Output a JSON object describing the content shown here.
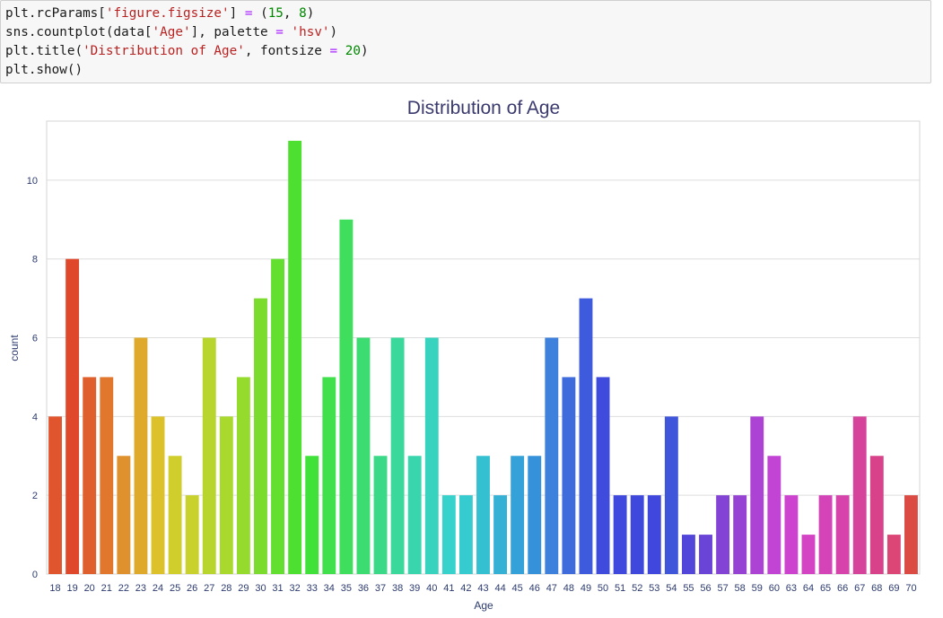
{
  "code_cell": {
    "lines": [
      [
        {
          "t": "plt.rcParams["
        },
        {
          "t": "'figure.figsize'",
          "c": "str"
        },
        {
          "t": "] "
        },
        {
          "t": "=",
          "c": "op"
        },
        {
          "t": " ("
        },
        {
          "t": "15",
          "c": "num"
        },
        {
          "t": ", "
        },
        {
          "t": "8",
          "c": "num"
        },
        {
          "t": ")"
        }
      ],
      [
        {
          "t": "sns.countplot(data["
        },
        {
          "t": "'Age'",
          "c": "str"
        },
        {
          "t": "], palette "
        },
        {
          "t": "=",
          "c": "op"
        },
        {
          "t": " "
        },
        {
          "t": "'hsv'",
          "c": "str"
        },
        {
          "t": ")"
        }
      ],
      [
        {
          "t": "plt.title("
        },
        {
          "t": "'Distribution of Age'",
          "c": "str"
        },
        {
          "t": ", fontsize "
        },
        {
          "t": "=",
          "c": "op"
        },
        {
          "t": " "
        },
        {
          "t": "20",
          "c": "num"
        },
        {
          "t": ")"
        }
      ],
      [
        {
          "t": "plt.show()"
        }
      ]
    ]
  },
  "chart_data": {
    "type": "bar",
    "title": "Distribution of Age",
    "xlabel": "Age",
    "ylabel": "count",
    "ylim": [
      0,
      11.5
    ],
    "yticks": [
      0,
      2,
      4,
      6,
      8,
      10
    ],
    "grid": true,
    "categories": [
      "18",
      "19",
      "20",
      "21",
      "22",
      "23",
      "24",
      "25",
      "26",
      "27",
      "28",
      "29",
      "30",
      "31",
      "32",
      "33",
      "34",
      "35",
      "36",
      "37",
      "38",
      "39",
      "40",
      "41",
      "42",
      "43",
      "44",
      "45",
      "46",
      "47",
      "48",
      "49",
      "50",
      "51",
      "52",
      "53",
      "54",
      "55",
      "56",
      "57",
      "58",
      "59",
      "60",
      "63",
      "64",
      "65",
      "66",
      "67",
      "68",
      "69",
      "70"
    ],
    "values": [
      4,
      8,
      5,
      5,
      3,
      6,
      4,
      3,
      2,
      6,
      4,
      5,
      7,
      8,
      11,
      3,
      5,
      9,
      6,
      3,
      6,
      3,
      6,
      2,
      2,
      3,
      2,
      3,
      3,
      6,
      5,
      7,
      5,
      2,
      2,
      2,
      4,
      1,
      1,
      2,
      2,
      4,
      3,
      2,
      1,
      2,
      2,
      4,
      3,
      1,
      2
    ],
    "colors": [
      "#e0552e",
      "#e0482b",
      "#e0602d",
      "#e0772c",
      "#df912d",
      "#dfaa2c",
      "#dcc12b",
      "#d0ce2c",
      "#c9d22d",
      "#b7d52c",
      "#a8d92c",
      "#95db2d",
      "#7cdc2e",
      "#62df2f",
      "#4de030",
      "#40e23a",
      "#3fe04b",
      "#3fde5c",
      "#3cdc72",
      "#3ad987",
      "#3ad89a",
      "#39d6ae",
      "#38d3be",
      "#37d2cc",
      "#36cccf",
      "#35c0d2",
      "#35b1d6",
      "#34a1d8",
      "#3592da",
      "#3d81dc",
      "#3f6cdd",
      "#3f5bdd",
      "#3f4bdd",
      "#3f49dd",
      "#3f48dd",
      "#3f47dd",
      "#3f55da",
      "#5146d9",
      "#6a44d6",
      "#8343d5",
      "#9643d4",
      "#ad43d5",
      "#c144d5",
      "#cd43cf",
      "#d543c5",
      "#d543b9",
      "#d543ab",
      "#d5439b",
      "#d8428a",
      "#dc4677",
      "#dc4a44"
    ]
  }
}
